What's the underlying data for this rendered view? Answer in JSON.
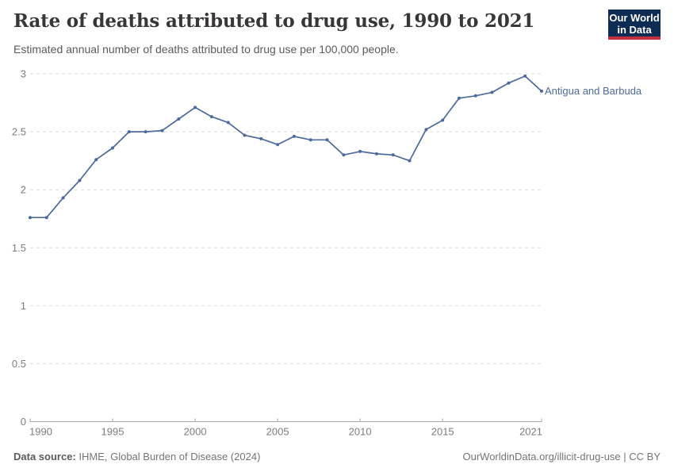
{
  "header": {
    "title": "Rate of deaths attributed to drug use, 1990 to 2021",
    "subtitle": "Estimated annual number of deaths attributed to drug use per 100,000 people.",
    "logo": {
      "line1": "Our World",
      "line2": "in Data"
    }
  },
  "chart_data": {
    "type": "line",
    "title": "Rate of deaths attributed to drug use, 1990 to 2021",
    "xlabel": "",
    "ylabel": "",
    "x": [
      1990,
      1991,
      1992,
      1993,
      1994,
      1995,
      1996,
      1997,
      1998,
      1999,
      2000,
      2001,
      2002,
      2003,
      2004,
      2005,
      2006,
      2007,
      2008,
      2009,
      2010,
      2011,
      2012,
      2013,
      2014,
      2015,
      2016,
      2017,
      2018,
      2019,
      2020,
      2021
    ],
    "series": [
      {
        "name": "Antigua and Barbuda",
        "color": "#4c6a9c",
        "values": [
          1.76,
          1.76,
          1.93,
          2.08,
          2.26,
          2.36,
          2.5,
          2.5,
          2.51,
          2.61,
          2.71,
          2.63,
          2.58,
          2.47,
          2.44,
          2.39,
          2.46,
          2.43,
          2.43,
          2.3,
          2.33,
          2.31,
          2.3,
          2.25,
          2.52,
          2.6,
          2.79,
          2.81,
          2.84,
          2.92,
          2.98,
          2.85
        ]
      }
    ],
    "xlim": [
      1990,
      2021
    ],
    "ylim": [
      0,
      3
    ],
    "x_ticks": [
      1990,
      1995,
      2000,
      2005,
      2010,
      2015,
      2021
    ],
    "y_ticks": [
      0,
      0.5,
      1,
      1.5,
      2,
      2.5,
      3
    ],
    "grid": "dashed-horizontal",
    "legend_position": "end-of-line-label"
  },
  "footer": {
    "source_label": "Data source:",
    "source_text": " IHME, Global Burden of Disease (2024)",
    "credit": "OurWorldinData.org/illicit-drug-use | CC BY"
  },
  "colors": {
    "line": "#4c6a9c",
    "gridline": "#dcdcdc",
    "axis": "#a5a5a5",
    "tick_label": "#7d7d7d",
    "logo_bg": "#0d2c54",
    "logo_bar": "#c5303e"
  }
}
